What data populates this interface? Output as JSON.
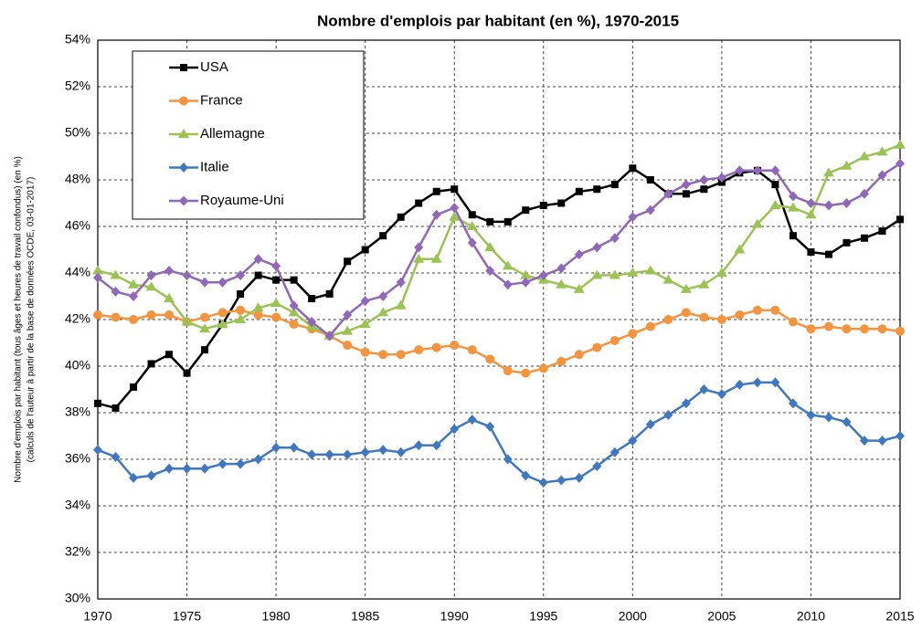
{
  "chart_data": {
    "type": "line",
    "title": "Nombre d'emplois par habitant (en %), 1970-2015",
    "y_label": [
      "Nombre d'emplois par habitant (tous âges et heures de travail confondus) (en %)",
      "(calculs de l'auteur à partir de la base de données OCDE, 03-01-2017)"
    ],
    "x": [
      1970,
      1971,
      1972,
      1973,
      1974,
      1975,
      1976,
      1977,
      1978,
      1979,
      1980,
      1981,
      1982,
      1983,
      1984,
      1985,
      1986,
      1987,
      1988,
      1989,
      1990,
      1991,
      1992,
      1993,
      1994,
      1995,
      1996,
      1997,
      1998,
      1999,
      2000,
      2001,
      2002,
      2003,
      2004,
      2005,
      2006,
      2007,
      2008,
      2009,
      2010,
      2011,
      2012,
      2013,
      2014,
      2015
    ],
    "xlim": [
      1970,
      2015
    ],
    "xticks": [
      1970,
      1975,
      1980,
      1985,
      1990,
      1995,
      2000,
      2005,
      2010,
      2015
    ],
    "ylim": [
      30,
      54
    ],
    "yticks": [
      {
        "value": 30,
        "label": "30%"
      },
      {
        "value": 32,
        "label": "32%"
      },
      {
        "value": 34,
        "label": "34%"
      },
      {
        "value": 36,
        "label": "36%"
      },
      {
        "value": 38,
        "label": "38%"
      },
      {
        "value": 40,
        "label": "40%"
      },
      {
        "value": 42,
        "label": "42%"
      },
      {
        "value": 44,
        "label": "44%"
      },
      {
        "value": 46,
        "label": "46%"
      },
      {
        "value": 48,
        "label": "48%"
      },
      {
        "value": 50,
        "label": "50%"
      },
      {
        "value": 52,
        "label": "52%"
      },
      {
        "value": 54,
        "label": "54%"
      }
    ],
    "grid": true,
    "legend": "upper left",
    "series": [
      {
        "name": "USA",
        "color": "#000000",
        "marker": "square",
        "values": [
          38.4,
          38.2,
          39.1,
          40.1,
          40.5,
          39.7,
          40.7,
          41.8,
          43.1,
          43.9,
          43.7,
          43.7,
          42.9,
          43.1,
          44.5,
          45.0,
          45.6,
          46.4,
          47.0,
          47.5,
          47.6,
          46.5,
          46.2,
          46.2,
          46.7,
          46.9,
          47.0,
          47.5,
          47.6,
          47.8,
          48.5,
          48.0,
          47.4,
          47.4,
          47.6,
          47.9,
          48.3,
          48.4,
          47.8,
          45.6,
          44.9,
          44.8,
          45.3,
          45.5,
          45.8,
          46.3
        ]
      },
      {
        "name": "France",
        "color": "#f4943e",
        "marker": "circle",
        "values": [
          42.2,
          42.1,
          42.0,
          42.2,
          42.2,
          41.9,
          42.1,
          42.3,
          42.4,
          42.2,
          42.1,
          41.8,
          41.6,
          41.3,
          40.9,
          40.6,
          40.5,
          40.5,
          40.7,
          40.8,
          40.9,
          40.7,
          40.3,
          39.8,
          39.7,
          39.9,
          40.2,
          40.5,
          40.8,
          41.1,
          41.4,
          41.7,
          42.0,
          42.3,
          42.1,
          42.0,
          42.2,
          42.4,
          42.4,
          41.9,
          41.6,
          41.7,
          41.6,
          41.6,
          41.6,
          41.5
        ]
      },
      {
        "name": "Allemagne",
        "color": "#9bc353",
        "marker": "triangle",
        "values": [
          44.1,
          43.9,
          43.5,
          43.4,
          42.9,
          41.9,
          41.6,
          41.8,
          42.0,
          42.5,
          42.7,
          42.3,
          41.7,
          41.3,
          41.5,
          41.8,
          42.3,
          42.6,
          44.6,
          44.6,
          46.4,
          46.0,
          45.1,
          44.3,
          43.9,
          43.7,
          43.5,
          43.3,
          43.9,
          43.9,
          44.0,
          44.1,
          43.7,
          43.3,
          43.5,
          44.0,
          45.0,
          46.1,
          46.9,
          46.8,
          46.5,
          48.3,
          48.6,
          49.0,
          49.2,
          49.5
        ]
      },
      {
        "name": "Italie",
        "color": "#3f78c0",
        "marker": "diamond",
        "values": [
          36.4,
          36.1,
          35.2,
          35.3,
          35.6,
          35.6,
          35.6,
          35.8,
          35.8,
          36.0,
          36.5,
          36.5,
          36.2,
          36.2,
          36.2,
          36.3,
          36.4,
          36.3,
          36.6,
          36.6,
          37.3,
          37.7,
          37.4,
          36.0,
          35.3,
          35.0,
          35.1,
          35.2,
          35.7,
          36.3,
          36.8,
          37.5,
          37.9,
          38.4,
          39.0,
          38.8,
          39.2,
          39.3,
          39.3,
          38.4,
          37.9,
          37.8,
          37.6,
          36.8,
          36.8,
          37.0
        ]
      },
      {
        "name": "Royaume-Uni",
        "color": "#9068b8",
        "marker": "diamond",
        "values": [
          43.8,
          43.2,
          43.0,
          43.9,
          44.1,
          43.9,
          43.6,
          43.6,
          43.9,
          44.6,
          44.3,
          42.6,
          41.9,
          41.3,
          42.2,
          42.8,
          43.0,
          43.6,
          45.1,
          46.5,
          46.8,
          45.3,
          44.1,
          43.5,
          43.6,
          43.9,
          44.2,
          44.8,
          45.1,
          45.5,
          46.4,
          46.7,
          47.4,
          47.8,
          48.0,
          48.1,
          48.4,
          48.4,
          48.4,
          47.3,
          47.0,
          46.9,
          47.0,
          47.4,
          48.2,
          48.7
        ]
      }
    ]
  }
}
